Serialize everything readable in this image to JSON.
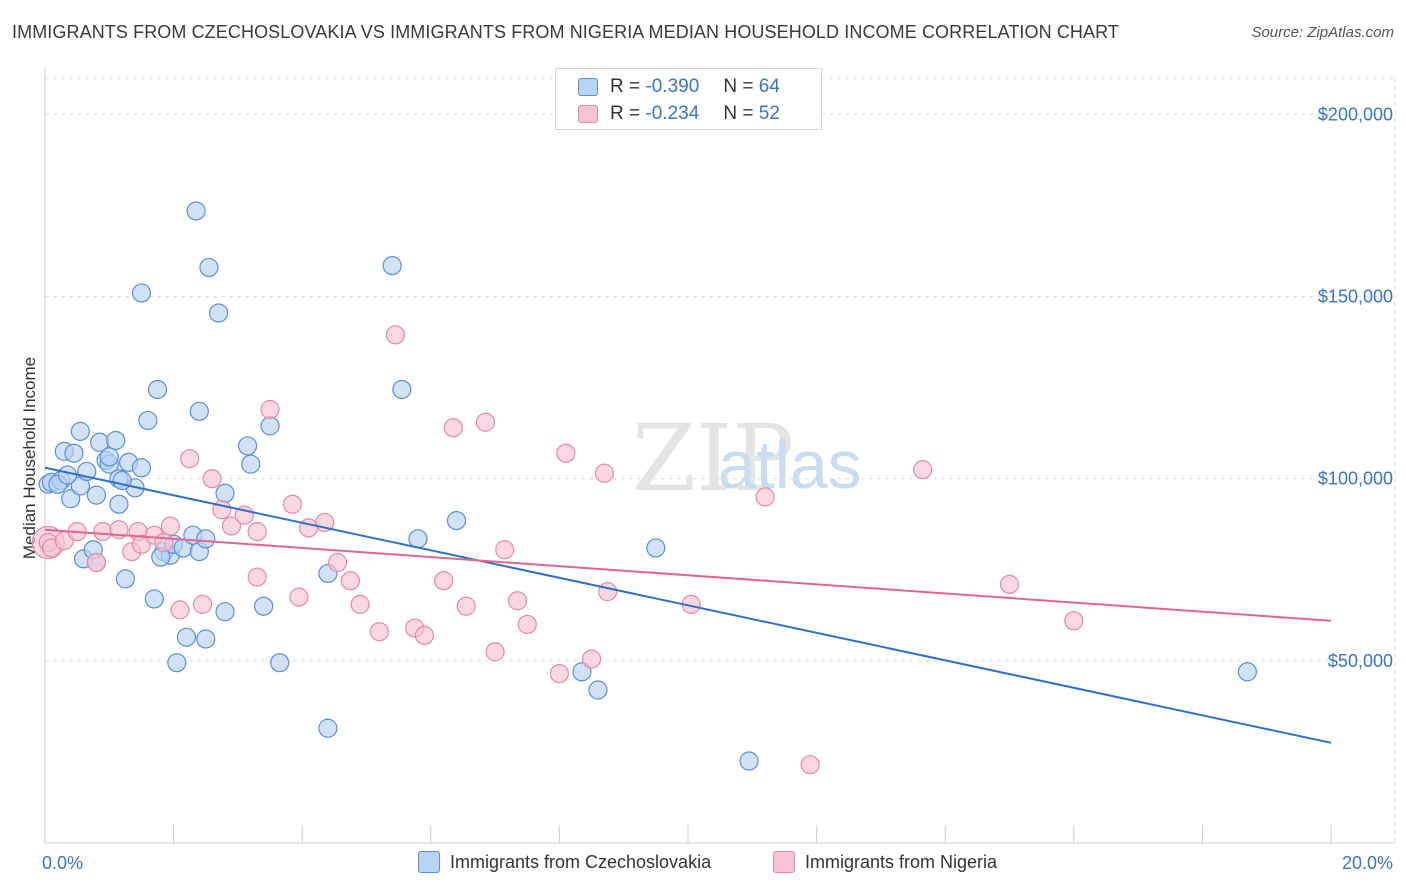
{
  "header": {
    "title": "IMMIGRANTS FROM CZECHOSLOVAKIA VS IMMIGRANTS FROM NIGERIA MEDIAN HOUSEHOLD INCOME CORRELATION CHART",
    "source": "Source: ZipAtlas.com"
  },
  "watermark": {
    "zip": "ZIP",
    "atlas": "atlas"
  },
  "legend": {
    "r_label": "R =",
    "n_label": "N =",
    "series": [
      {
        "r": "-0.390",
        "n": "64"
      },
      {
        "r": "-0.234",
        "n": "52"
      }
    ]
  },
  "colors": {
    "czechoslovakia_fill": "#b9d3f3",
    "czechoslovakia_stroke": "#5b8fd8",
    "czechoslovakia_line": "#2f6fd0",
    "nigeria_fill": "#f6c3d3",
    "nigeria_stroke": "#e58aa8",
    "nigeria_line": "#e0668f",
    "tick_text": "#3a74c4",
    "grid": "#dcdcdc"
  },
  "chart_data": {
    "type": "scatter",
    "title": "IMMIGRANTS FROM CZECHOSLOVAKIA VS IMMIGRANTS FROM NIGERIA MEDIAN HOUSEHOLD INCOME CORRELATION CHART",
    "xlabel": "",
    "ylabel": "Median Household Income",
    "xlim": [
      0,
      20
    ],
    "ylim": [
      0,
      210000
    ],
    "x_tick_labels": [
      "0.0%",
      "20.0%"
    ],
    "y_ticks": [
      50000,
      100000,
      150000,
      200000
    ],
    "y_tick_labels": [
      "$50,000",
      "$100,000",
      "$150,000",
      "$200,000"
    ],
    "grid": true,
    "legend_position": "top-center",
    "series": [
      {
        "name": "Immigrants from Czechoslovakia",
        "r": -0.39,
        "n": 64,
        "trend": {
          "x": [
            0,
            20
          ],
          "y": [
            103000,
            27500
          ]
        },
        "points": [
          [
            0.05,
            98500
          ],
          [
            0.1,
            99000
          ],
          [
            0.25,
            99500
          ],
          [
            0.4,
            94500
          ],
          [
            0.55,
            98000
          ],
          [
            0.3,
            107500
          ],
          [
            0.45,
            107000
          ],
          [
            0.55,
            113000
          ],
          [
            0.65,
            102000
          ],
          [
            0.8,
            95500
          ],
          [
            0.85,
            110000
          ],
          [
            0.95,
            105000
          ],
          [
            1.0,
            104000
          ],
          [
            1.1,
            110500
          ],
          [
            1.15,
            100000
          ],
          [
            1.15,
            93000
          ],
          [
            1.3,
            104500
          ],
          [
            1.4,
            97500
          ],
          [
            1.5,
            103000
          ],
          [
            1.5,
            151000
          ],
          [
            1.6,
            116000
          ],
          [
            1.75,
            124500
          ],
          [
            1.85,
            80000
          ],
          [
            1.95,
            79000
          ],
          [
            2.0,
            82000
          ],
          [
            2.15,
            81000
          ],
          [
            2.3,
            84500
          ],
          [
            2.4,
            118500
          ],
          [
            2.4,
            80000
          ],
          [
            2.5,
            83500
          ],
          [
            2.55,
            158000
          ],
          [
            2.7,
            145500
          ],
          [
            2.8,
            63500
          ],
          [
            2.8,
            96000
          ],
          [
            3.15,
            109000
          ],
          [
            3.2,
            104000
          ],
          [
            3.4,
            65000
          ],
          [
            3.5,
            114500
          ],
          [
            3.65,
            49500
          ],
          [
            4.4,
            31500
          ],
          [
            4.4,
            74000
          ],
          [
            5.4,
            158500
          ],
          [
            5.55,
            124500
          ],
          [
            5.8,
            83500
          ],
          [
            6.4,
            88500
          ],
          [
            8.35,
            47000
          ],
          [
            8.6,
            42000
          ],
          [
            9.5,
            81000
          ],
          [
            10.95,
            22500
          ],
          [
            18.7,
            47000
          ],
          [
            0.6,
            78000
          ],
          [
            1.25,
            72500
          ],
          [
            1.8,
            78500
          ],
          [
            1.7,
            67000
          ],
          [
            2.2,
            56500
          ],
          [
            2.5,
            56000
          ],
          [
            2.05,
            49500
          ],
          [
            0.75,
            80500
          ],
          [
            0.8,
            77000
          ],
          [
            2.35,
            173500
          ],
          [
            0.2,
            98500
          ],
          [
            1.0,
            106000
          ],
          [
            0.35,
            101000
          ],
          [
            1.2,
            99500
          ]
        ]
      },
      {
        "name": "Immigrants from Nigeria",
        "r": -0.234,
        "n": 52,
        "trend": {
          "x": [
            0,
            20
          ],
          "y": [
            86000,
            61000
          ]
        },
        "points": [
          [
            0.05,
            82500
          ],
          [
            0.1,
            81000
          ],
          [
            0.3,
            83000
          ],
          [
            0.5,
            85500
          ],
          [
            0.8,
            77000
          ],
          [
            0.9,
            85500
          ],
          [
            1.15,
            86000
          ],
          [
            1.35,
            80000
          ],
          [
            1.45,
            85500
          ],
          [
            1.5,
            82000
          ],
          [
            1.7,
            84500
          ],
          [
            1.85,
            82500
          ],
          [
            1.95,
            87000
          ],
          [
            2.1,
            64000
          ],
          [
            2.25,
            105500
          ],
          [
            2.45,
            65500
          ],
          [
            2.6,
            100000
          ],
          [
            2.75,
            91500
          ],
          [
            2.9,
            87000
          ],
          [
            3.1,
            90000
          ],
          [
            3.3,
            73000
          ],
          [
            3.3,
            85500
          ],
          [
            3.5,
            119000
          ],
          [
            3.85,
            93000
          ],
          [
            3.95,
            67500
          ],
          [
            4.1,
            86500
          ],
          [
            4.35,
            88000
          ],
          [
            4.55,
            77000
          ],
          [
            4.75,
            72000
          ],
          [
            4.9,
            65500
          ],
          [
            5.2,
            58000
          ],
          [
            5.45,
            139500
          ],
          [
            5.75,
            59000
          ],
          [
            5.9,
            57000
          ],
          [
            6.2,
            72000
          ],
          [
            6.35,
            114000
          ],
          [
            6.55,
            65000
          ],
          [
            6.85,
            115500
          ],
          [
            7.0,
            52500
          ],
          [
            7.15,
            80500
          ],
          [
            7.35,
            66500
          ],
          [
            7.5,
            60000
          ],
          [
            8.0,
            46500
          ],
          [
            8.1,
            107000
          ],
          [
            8.5,
            50500
          ],
          [
            8.7,
            101500
          ],
          [
            8.75,
            69000
          ],
          [
            10.05,
            65500
          ],
          [
            11.2,
            95000
          ],
          [
            11.9,
            21500
          ],
          [
            13.65,
            102500
          ],
          [
            15.0,
            71000
          ]
        ]
      },
      {
        "name": "Immigrants from Nigeria (right)",
        "points": [
          [
            16.0,
            61000
          ]
        ]
      }
    ]
  },
  "bottom_legend": {
    "items": [
      {
        "label": "Immigrants from Czechoslovakia"
      },
      {
        "label": "Immigrants from Nigeria"
      }
    ]
  }
}
